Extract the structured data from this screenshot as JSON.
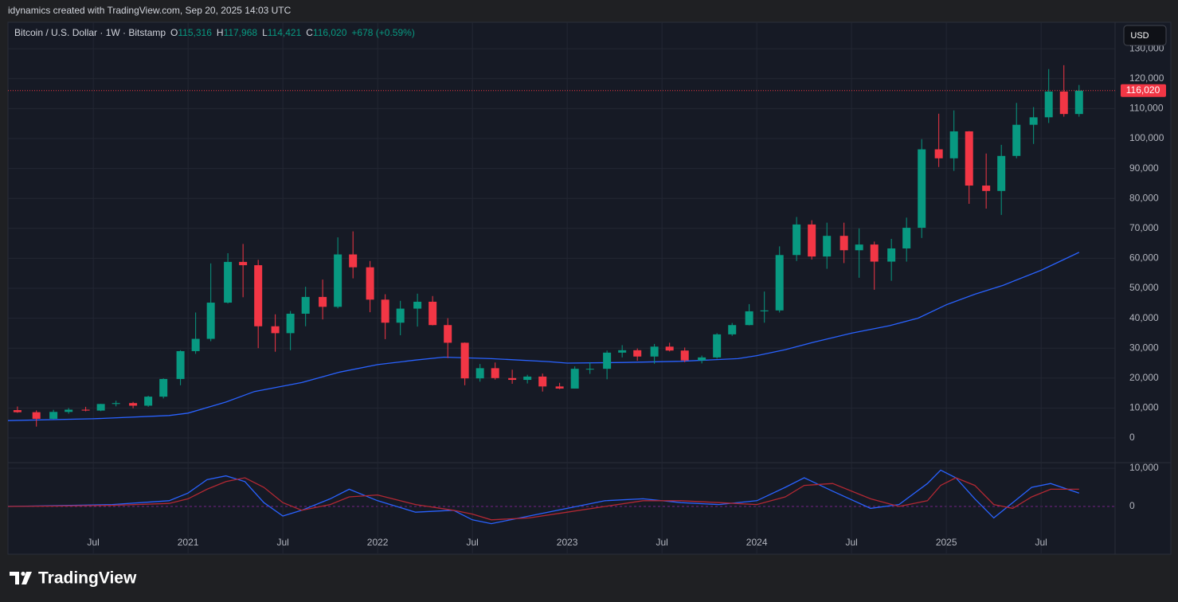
{
  "header": {
    "attribution": "idynamics created with TradingView.com, Sep 20, 2025 14:03 UTC"
  },
  "chart_data": {
    "type": "candlestick",
    "symbol": "Bitcoin / U.S. Dollar · 1W · Bitstamp",
    "ohlc": [
      {
        "key": "O",
        "text": "115,316"
      },
      {
        "key": "H",
        "text": "117,968"
      },
      {
        "key": "L",
        "text": "114,421"
      },
      {
        "key": "C",
        "text": "116,020"
      }
    ],
    "change": "+678 (+0.59%)",
    "currency": "USD",
    "up_color": "#089981",
    "down_color": "#f23645",
    "xlim": [
      2020.05,
      2025.89
    ],
    "xticks": [
      {
        "value": 2020.5,
        "label": "Jul"
      },
      {
        "value": 2021.0,
        "label": "2021"
      },
      {
        "value": 2021.5,
        "label": "Jul"
      },
      {
        "value": 2022.0,
        "label": "2022"
      },
      {
        "value": 2022.5,
        "label": "Jul"
      },
      {
        "value": 2023.0,
        "label": "2023"
      },
      {
        "value": 2023.5,
        "label": "Jul"
      },
      {
        "value": 2024.0,
        "label": "2024"
      },
      {
        "value": 2024.5,
        "label": "Jul"
      },
      {
        "value": 2025.0,
        "label": "2025"
      },
      {
        "value": 2025.5,
        "label": "Jul"
      }
    ],
    "ylim": [
      -7980,
      138830
    ],
    "yticks": [
      0,
      {
        "value": 10000,
        "label": "10,000"
      },
      {
        "value": 20000,
        "label": "20,000"
      },
      {
        "value": 30000,
        "label": "30,000"
      },
      {
        "value": 40000,
        "label": "40,000"
      },
      {
        "value": 50000,
        "label": "50,000"
      },
      {
        "value": 60000,
        "label": "60,000"
      },
      {
        "value": 70000,
        "label": "70,000"
      },
      {
        "value": 80000,
        "label": "80,000"
      },
      {
        "value": 90000,
        "label": "90,000"
      },
      {
        "value": 100000,
        "label": "100,000"
      },
      {
        "value": 110000,
        "label": "110,000"
      },
      {
        "value": 120000,
        "label": "120,000"
      },
      {
        "value": 130000,
        "label": "130,000"
      }
    ],
    "grid": true,
    "last_price": {
      "value": 116020,
      "label": "116,020",
      "color": "#f23645"
    },
    "candles": {
      "x": [
        2020.1,
        2020.2,
        2020.29,
        2020.37,
        2020.46,
        2020.54,
        2020.62,
        2020.71,
        2020.79,
        2020.87,
        2020.96,
        2021.04,
        2021.12,
        2021.21,
        2021.29,
        2021.37,
        2021.46,
        2021.54,
        2021.62,
        2021.71,
        2021.79,
        2021.87,
        2021.96,
        2022.04,
        2022.12,
        2022.21,
        2022.29,
        2022.37,
        2022.46,
        2022.54,
        2022.62,
        2022.71,
        2022.79,
        2022.87,
        2022.96,
        2023.04,
        2023.12,
        2023.21,
        2023.29,
        2023.37,
        2023.46,
        2023.54,
        2023.62,
        2023.71,
        2023.79,
        2023.87,
        2023.96,
        2024.04,
        2024.12,
        2024.21,
        2024.29,
        2024.37,
        2024.46,
        2024.54,
        2024.62,
        2024.71,
        2024.79,
        2024.87,
        2024.96,
        2025.04,
        2025.12,
        2025.21,
        2025.29,
        2025.37,
        2025.46,
        2025.54,
        2025.62,
        2025.7
      ],
      "open": [
        9300,
        8600,
        6400,
        8700,
        9450,
        9150,
        11350,
        11650,
        10780,
        13800,
        19700,
        29000,
        33100,
        45200,
        58800,
        57700,
        37300,
        35000,
        41500,
        47100,
        43800,
        61300,
        57000,
        46200,
        38500,
        43200,
        45500,
        37700,
        31800,
        19900,
        23300,
        20000,
        19400,
        20500,
        17200,
        16500,
        23100,
        23100,
        28500,
        29300,
        27200,
        30500,
        29200,
        25900,
        26900,
        34600,
        37700,
        42300,
        42600,
        61100,
        71300,
        60600,
        67500,
        62700,
        64600,
        58900,
        63300,
        70200,
        96400,
        93400,
        102400,
        84300,
        82500,
        94200,
        104600,
        107100,
        115700,
        108200
      ],
      "high": [
        10500,
        9200,
        9400,
        10000,
        10400,
        11400,
        12450,
        12050,
        14100,
        19900,
        29300,
        41900,
        58300,
        61700,
        64800,
        59500,
        41300,
        42400,
        50500,
        52900,
        67000,
        69000,
        59100,
        48000,
        45800,
        48200,
        47400,
        40000,
        31900,
        24700,
        25200,
        22800,
        21100,
        21500,
        18400,
        23900,
        25300,
        29200,
        31000,
        29900,
        31400,
        31800,
        30200,
        27500,
        35000,
        38400,
        44700,
        48900,
        64000,
        73800,
        72700,
        71900,
        71900,
        70000,
        65600,
        66500,
        73600,
        99800,
        108300,
        109400,
        102500,
        95000,
        97900,
        111900,
        110500,
        123200,
        124500,
        117900
      ],
      "low": [
        8400,
        3800,
        6200,
        8100,
        8900,
        8950,
        10550,
        9900,
        10400,
        13200,
        17600,
        28100,
        32300,
        44900,
        47000,
        30000,
        28800,
        29300,
        37300,
        39600,
        43300,
        53300,
        42000,
        33000,
        34300,
        37200,
        37600,
        26700,
        17600,
        18800,
        19500,
        18100,
        18200,
        15500,
        16300,
        16500,
        21400,
        19600,
        26900,
        25800,
        24800,
        28900,
        25300,
        24900,
        26500,
        34100,
        37600,
        38500,
        41900,
        59100,
        59600,
        56500,
        58400,
        53500,
        49500,
        52500,
        58900,
        66800,
        90500,
        89200,
        78200,
        76600,
        74500,
        93400,
        98200,
        105200,
        107300,
        107300
      ],
      "close": [
        8600,
        6400,
        8700,
        9450,
        9150,
        11350,
        11650,
        10780,
        13800,
        19700,
        29000,
        33100,
        45200,
        58800,
        57700,
        37300,
        35000,
        41500,
        47100,
        43800,
        61300,
        57000,
        46200,
        38500,
        43200,
        45500,
        37700,
        31800,
        19900,
        23300,
        20000,
        19400,
        20500,
        17200,
        16500,
        23100,
        23100,
        28500,
        29300,
        27200,
        30500,
        29200,
        25900,
        26900,
        34600,
        37700,
        42300,
        42600,
        61100,
        71300,
        60600,
        67500,
        62700,
        64600,
        58900,
        63300,
        70200,
        96400,
        93400,
        102400,
        84300,
        82500,
        94200,
        104600,
        107100,
        115700,
        108200,
        116020
      ]
    },
    "ma": {
      "color": "#2962ff",
      "x": [
        2020.05,
        2020.5,
        2020.9,
        2021.0,
        2021.2,
        2021.35,
        2021.6,
        2021.8,
        2022.0,
        2022.2,
        2022.35,
        2022.6,
        2022.9,
        2023.0,
        2023.3,
        2023.6,
        2023.9,
        2024.0,
        2024.15,
        2024.3,
        2024.5,
        2024.7,
        2024.85,
        2025.0,
        2025.15,
        2025.3,
        2025.5,
        2025.7
      ],
      "values": [
        5800,
        6400,
        7500,
        8300,
        12000,
        15500,
        18500,
        22000,
        24500,
        26000,
        27000,
        26500,
        25500,
        25000,
        25200,
        25600,
        26500,
        27500,
        29500,
        32000,
        35000,
        37500,
        40000,
        44500,
        48000,
        51000,
        56000,
        62000
      ]
    },
    "oscillator": {
      "ylim": [
        -12290,
        11250
      ],
      "yticks": [
        0,
        {
          "value": 10000,
          "label": "10,000"
        }
      ],
      "zero_color": "#9c27b0",
      "x": [
        2020.05,
        2020.3,
        2020.6,
        2020.9,
        2021.0,
        2021.1,
        2021.2,
        2021.3,
        2021.4,
        2021.5,
        2021.6,
        2021.75,
        2021.85,
        2022.0,
        2022.2,
        2022.4,
        2022.5,
        2022.6,
        2022.8,
        2023.0,
        2023.2,
        2023.4,
        2023.6,
        2023.8,
        2024.0,
        2024.15,
        2024.25,
        2024.4,
        2024.6,
        2024.75,
        2024.9,
        2024.97,
        2025.05,
        2025.15,
        2025.25,
        2025.35,
        2025.45,
        2025.55,
        2025.7
      ],
      "series": [
        {
          "color": "#2962ff",
          "values": [
            0,
            200,
            500,
            1500,
            3500,
            7000,
            8000,
            6500,
            1000,
            -2500,
            -1000,
            2000,
            4500,
            1500,
            -1500,
            -1000,
            -3500,
            -4500,
            -2500,
            -500,
            1500,
            2000,
            1000,
            500,
            1500,
            5000,
            7500,
            4000,
            -500,
            500,
            6000,
            9500,
            7500,
            2000,
            -3000,
            1000,
            5000,
            6000,
            3500
          ]
        },
        {
          "color": "#b22833",
          "values": [
            0,
            100,
            300,
            800,
            2000,
            4500,
            6500,
            7500,
            5000,
            1000,
            -1000,
            500,
            2500,
            3000,
            500,
            -1000,
            -2000,
            -3500,
            -3000,
            -1500,
            0,
            1500,
            1500,
            1000,
            500,
            2500,
            5500,
            6000,
            2000,
            0,
            1500,
            5500,
            7500,
            5500,
            500,
            -500,
            2500,
            4500,
            4500
          ]
        }
      ]
    }
  },
  "footer": {
    "brand": "TradingView"
  }
}
